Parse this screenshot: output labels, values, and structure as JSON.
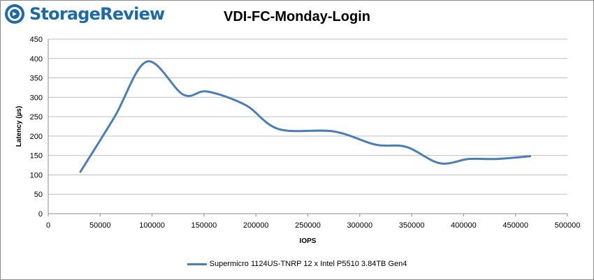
{
  "brand": {
    "name": "StorageReview",
    "icon": "storagereview-logo-icon",
    "color": "#1d6aa8"
  },
  "chart_data": {
    "type": "line",
    "title": "VDI-FC-Monday-Login",
    "xlabel": "IOPS",
    "ylabel": "Latency (µs)",
    "xlim": [
      0,
      500000
    ],
    "ylim": [
      0,
      450
    ],
    "xticks": [
      0,
      50000,
      100000,
      150000,
      200000,
      250000,
      300000,
      350000,
      400000,
      450000,
      500000
    ],
    "yticks": [
      0,
      50,
      100,
      150,
      200,
      250,
      300,
      350,
      400,
      450
    ],
    "grid": true,
    "legend_position": "bottom",
    "series": [
      {
        "name": "Supermicro 1124US-TNRP 12 x Intel P5510 3.84TB Gen4",
        "color": "#4a7ebb",
        "x": [
          31000,
          64000,
          95000,
          130000,
          153000,
          190000,
          222000,
          275000,
          315000,
          345000,
          377000,
          405000,
          432000,
          464000
        ],
        "y": [
          108,
          250,
          392,
          307,
          315,
          280,
          218,
          212,
          178,
          172,
          130,
          141,
          141,
          148
        ]
      }
    ]
  }
}
